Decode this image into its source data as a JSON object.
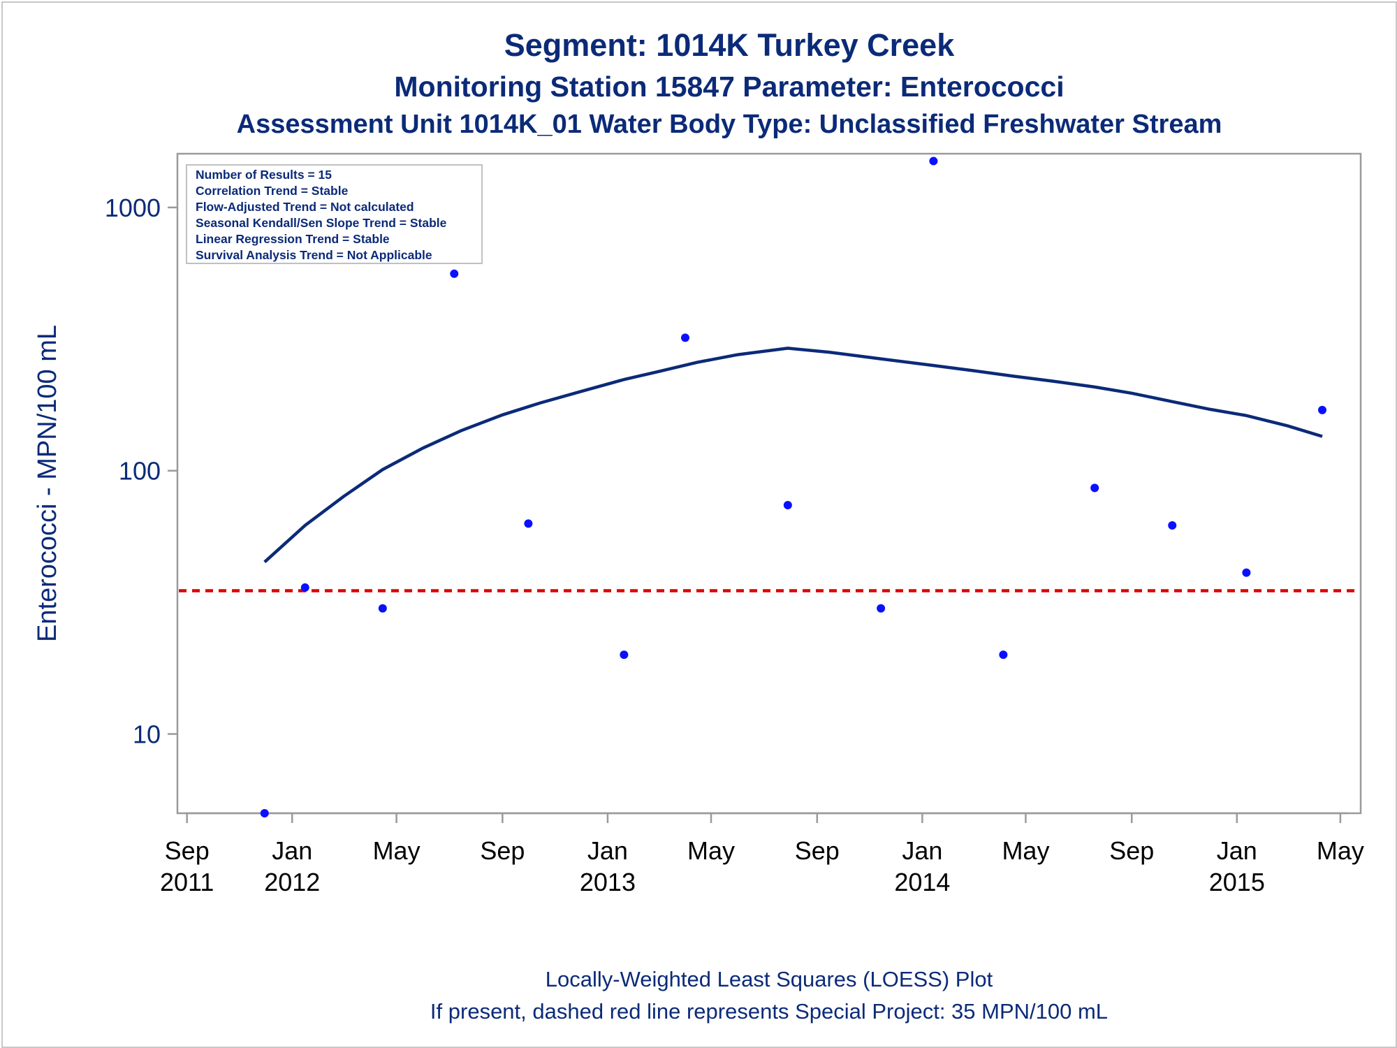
{
  "titles": {
    "line1": "Segment: 1014K  Turkey Creek",
    "line2": "Monitoring Station 15847 Parameter: Enterococci",
    "line3": "Assessment Unit 1014K_01   Water Body Type: Unclassified Freshwater Stream"
  },
  "stats_box": [
    "Number of Results = 15",
    "Correlation Trend = Stable",
    "Flow-Adjusted Trend = Not calculated",
    "Seasonal Kendall/Sen Slope Trend = Stable",
    "Linear Regression Trend = Stable",
    "Survival Analysis Trend = Not Applicable"
  ],
  "footnotes": {
    "line1": "Locally-Weighted Least Squares (LOESS) Plot",
    "line2": "If present, dashed red line represents Special Project: 35 MPN/100 mL"
  },
  "colors": {
    "title": "#0b2a78",
    "points": "#0a10ff",
    "loess": "#0b2a78",
    "reference": "#dd0000",
    "axis": "#9a9a9a"
  },
  "chart_data": {
    "type": "scatter",
    "ylabel": "Enterococci - MPN/100 mL",
    "yscale": "log",
    "ylim": [
      5,
      1600
    ],
    "yticks": [
      {
        "value": 10,
        "label": "10"
      },
      {
        "value": 100,
        "label": "100"
      },
      {
        "value": 1000,
        "label": "1000"
      }
    ],
    "xlim": [
      "2011-08-29",
      "2015-05-10"
    ],
    "xticks": [
      {
        "date": "2011-09-01",
        "label": [
          "Sep",
          "2011"
        ]
      },
      {
        "date": "2012-01-01",
        "label": [
          "Jan",
          "2012"
        ]
      },
      {
        "date": "2012-05-01",
        "label": [
          "May",
          ""
        ]
      },
      {
        "date": "2012-09-01",
        "label": [
          "Sep",
          ""
        ]
      },
      {
        "date": "2013-01-01",
        "label": [
          "Jan",
          "2013"
        ]
      },
      {
        "date": "2013-05-01",
        "label": [
          "May",
          ""
        ]
      },
      {
        "date": "2013-09-01",
        "label": [
          "Sep",
          ""
        ]
      },
      {
        "date": "2014-01-01",
        "label": [
          "Jan",
          "2014"
        ]
      },
      {
        "date": "2014-05-01",
        "label": [
          "May",
          ""
        ]
      },
      {
        "date": "2014-09-01",
        "label": [
          "Sep",
          ""
        ]
      },
      {
        "date": "2015-01-01",
        "label": [
          "Jan",
          "2015"
        ]
      },
      {
        "date": "2015-05-01",
        "label": [
          "May",
          ""
        ]
      }
    ],
    "points": [
      {
        "x": "2011-11-30",
        "y": 5
      },
      {
        "x": "2012-01-16",
        "y": 36
      },
      {
        "x": "2012-04-15",
        "y": 30
      },
      {
        "x": "2012-07-07",
        "y": 560
      },
      {
        "x": "2012-10-01",
        "y": 63
      },
      {
        "x": "2013-01-20",
        "y": 20
      },
      {
        "x": "2013-04-01",
        "y": 320
      },
      {
        "x": "2013-07-29",
        "y": 74
      },
      {
        "x": "2013-11-14",
        "y": 30
      },
      {
        "x": "2014-01-14",
        "y": 1500
      },
      {
        "x": "2014-04-05",
        "y": 20
      },
      {
        "x": "2014-07-20",
        "y": 86
      },
      {
        "x": "2014-10-18",
        "y": 62
      },
      {
        "x": "2015-01-12",
        "y": 41
      },
      {
        "x": "2015-04-10",
        "y": 170
      }
    ],
    "loess": [
      {
        "x": "2011-11-30",
        "y": 45
      },
      {
        "x": "2012-01-16",
        "y": 62
      },
      {
        "x": "2012-03-01",
        "y": 80
      },
      {
        "x": "2012-04-15",
        "y": 101
      },
      {
        "x": "2012-06-01",
        "y": 122
      },
      {
        "x": "2012-07-15",
        "y": 142
      },
      {
        "x": "2012-09-01",
        "y": 163
      },
      {
        "x": "2012-10-15",
        "y": 181
      },
      {
        "x": "2012-12-01",
        "y": 200
      },
      {
        "x": "2013-01-20",
        "y": 222
      },
      {
        "x": "2013-03-01",
        "y": 238
      },
      {
        "x": "2013-04-15",
        "y": 258
      },
      {
        "x": "2013-06-01",
        "y": 276
      },
      {
        "x": "2013-07-29",
        "y": 292
      },
      {
        "x": "2013-09-15",
        "y": 282
      },
      {
        "x": "2013-11-14",
        "y": 266
      },
      {
        "x": "2014-01-14",
        "y": 251
      },
      {
        "x": "2014-03-01",
        "y": 240
      },
      {
        "x": "2014-04-15",
        "y": 229
      },
      {
        "x": "2014-06-01",
        "y": 219
      },
      {
        "x": "2014-07-20",
        "y": 208
      },
      {
        "x": "2014-09-01",
        "y": 197
      },
      {
        "x": "2014-10-18",
        "y": 183
      },
      {
        "x": "2014-12-01",
        "y": 171
      },
      {
        "x": "2015-01-12",
        "y": 162
      },
      {
        "x": "2015-03-01",
        "y": 148
      },
      {
        "x": "2015-04-10",
        "y": 135
      }
    ],
    "reference_line": {
      "y": 35
    }
  }
}
